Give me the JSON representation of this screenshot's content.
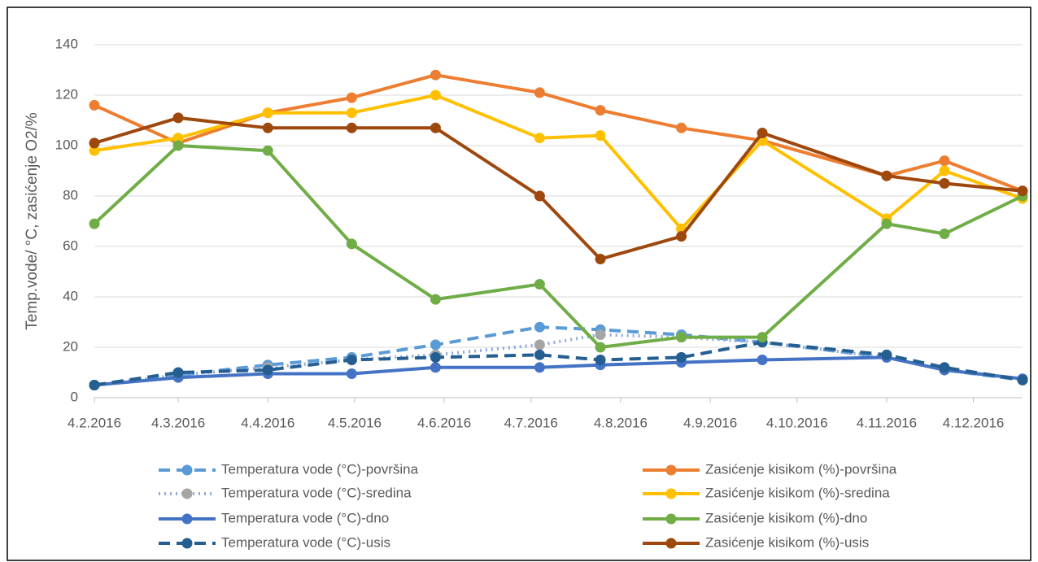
{
  "chart_data": {
    "type": "line",
    "y_label": "Temp.vode/ °C, zasićenje O2/%",
    "x": [
      "2016-02-04",
      "2016-03-04",
      "2016-04-04",
      "2016-05-03",
      "2016-06-01",
      "2016-07-07",
      "2016-07-28",
      "2016-08-25",
      "2016-09-22",
      "2016-11-04",
      "2016-11-24",
      "2016-12-21"
    ],
    "xlim": [
      "2016-02-04",
      "2016-12-21"
    ],
    "xticks": [
      {
        "value": "2016-02-04",
        "label": "4.2.2016"
      },
      {
        "value": "2016-03-04",
        "label": "4.3.2016"
      },
      {
        "value": "2016-04-04",
        "label": "4.4.2016"
      },
      {
        "value": "2016-05-04",
        "label": "4.5.2016"
      },
      {
        "value": "2016-06-04",
        "label": "4.6.2016"
      },
      {
        "value": "2016-07-04",
        "label": "4.7.2016"
      },
      {
        "value": "2016-08-04",
        "label": "4.8.2016"
      },
      {
        "value": "2016-09-04",
        "label": "4.9.2016"
      },
      {
        "value": "2016-10-04",
        "label": "4.10.2016"
      },
      {
        "value": "2016-11-04",
        "label": "4.11.2016"
      },
      {
        "value": "2016-12-04",
        "label": "4.12.2016"
      }
    ],
    "ylim": [
      0,
      140
    ],
    "yticks": [
      0,
      20,
      40,
      60,
      80,
      100,
      120,
      140
    ],
    "grid": true,
    "series": [
      {
        "name": "Temperatura vode (°C)-površina",
        "color": "#5b9bd5",
        "marker_color": "#5b9bd5",
        "dash": "dash",
        "values": [
          5,
          9,
          13,
          16,
          21,
          28,
          27,
          25,
          22,
          16,
          11,
          7
        ]
      },
      {
        "name": "Temperatura vode (°C)-sredina",
        "color": "#8faadc",
        "marker_color": "#a5a5a5",
        "dash": "dot",
        "values": [
          5,
          9,
          12,
          15,
          17,
          21,
          25,
          24,
          22,
          16,
          11,
          7
        ]
      },
      {
        "name": "Temperatura vode (°C)-dno",
        "color": "#4472c4",
        "marker_color": "#4472c4",
        "dash": "solid",
        "values": [
          5,
          8,
          9.5,
          9.5,
          12,
          12,
          13,
          14,
          15,
          16,
          11,
          7.5
        ]
      },
      {
        "name": "Temperatura vode (°C)-usis",
        "color": "#255e91",
        "marker_color": "#255e91",
        "dash": "dash",
        "values": [
          5,
          10,
          11,
          15,
          16,
          17,
          15,
          16,
          22,
          17,
          12,
          7
        ]
      },
      {
        "name": "Zasićenje kisikom (%)-površina",
        "color": "#ed7d31",
        "marker_color": "#ed7d31",
        "dash": "solid",
        "values": [
          116,
          101,
          113,
          119,
          128,
          121,
          114,
          107,
          102,
          88,
          94,
          82
        ]
      },
      {
        "name": "Zasićenje kisikom (%)-sredina",
        "color": "#ffc000",
        "marker_color": "#ffc000",
        "dash": "solid",
        "values": [
          98,
          103,
          113,
          113,
          120,
          103,
          104,
          67,
          102,
          71,
          90,
          79
        ]
      },
      {
        "name": "Zasićenje kisikom (%)-dno",
        "color": "#70ad47",
        "marker_color": "#70ad47",
        "dash": "solid",
        "values": [
          69,
          100,
          98,
          61,
          39,
          45,
          20,
          24,
          24,
          69,
          65,
          80
        ]
      },
      {
        "name": "Zasićenje kisikom (%)-usis",
        "color": "#9e480e",
        "marker_color": "#9e480e",
        "dash": "solid",
        "values": [
          101,
          111,
          107,
          107,
          107,
          80,
          55,
          64,
          105,
          88,
          85,
          82
        ]
      }
    ]
  }
}
